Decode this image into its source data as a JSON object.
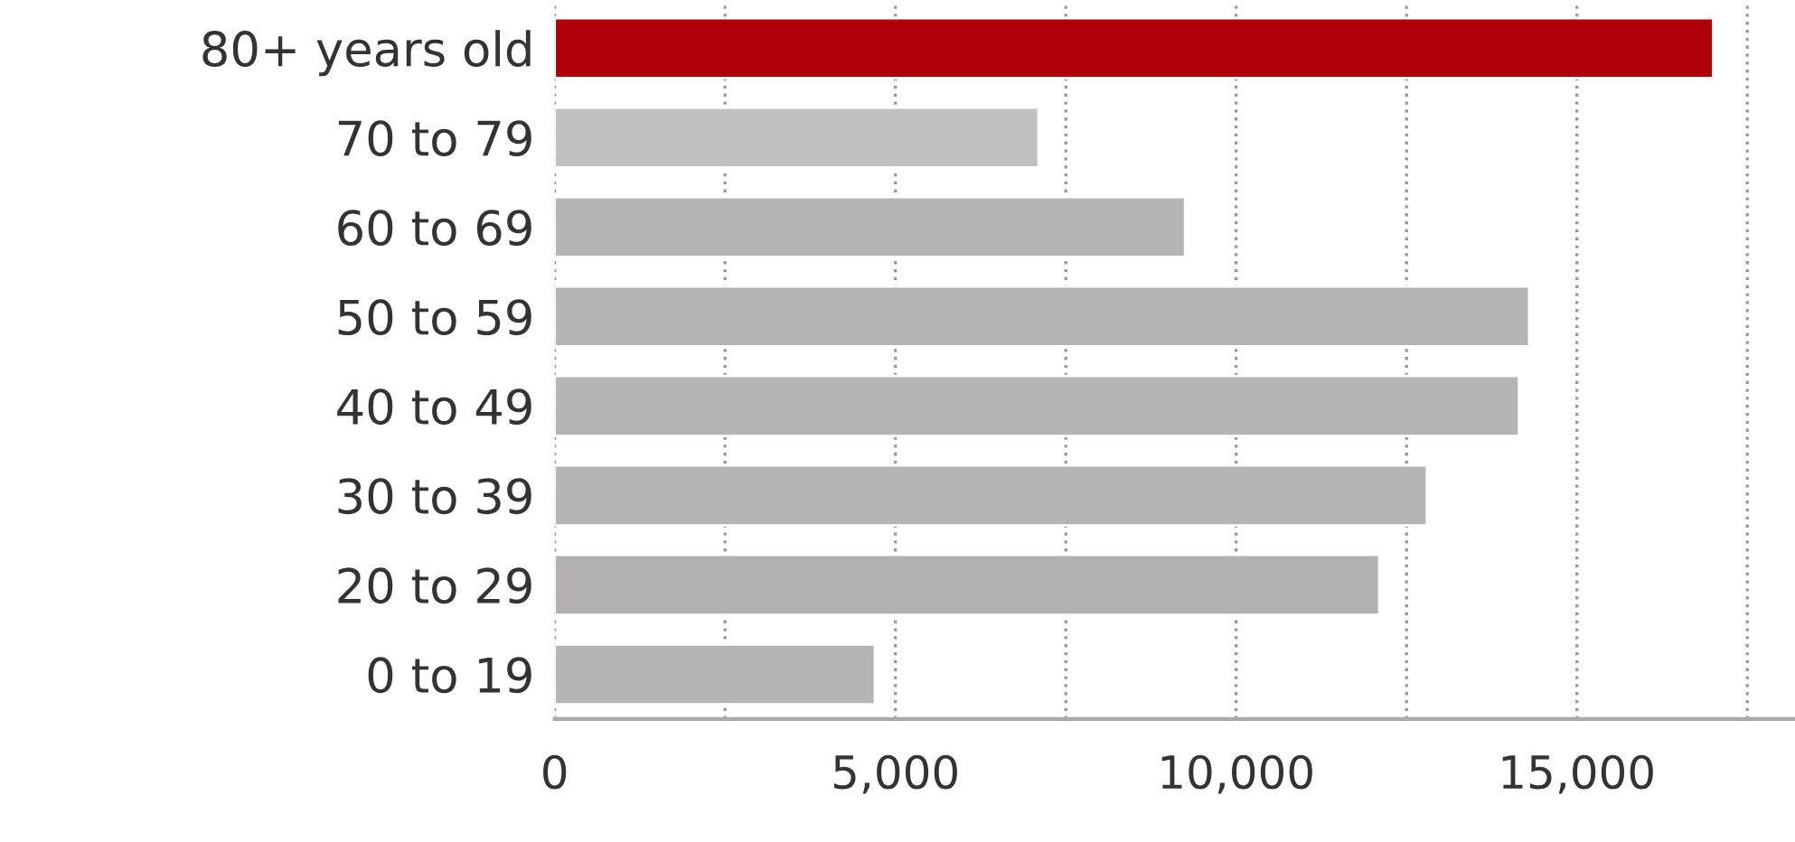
{
  "chart_data": {
    "type": "bar",
    "orientation": "horizontal",
    "categories": [
      "80+ years old",
      "70 to 79",
      "60 to 69",
      "50 to 59",
      "40 to 49",
      "30 to 39",
      "20 to 29",
      "0 to 19"
    ],
    "values": [
      17000,
      7100,
      9250,
      14300,
      14150,
      12800,
      12100,
      4700
    ],
    "colors": [
      "#b00008",
      "#c0c0c0",
      "#b4b4b4",
      "#b4b4b4",
      "#b4b4b4",
      "#b4b4b4",
      "#b2b0b0",
      "#b4b4b4"
    ],
    "xlim": [
      0,
      18200
    ],
    "xticks": [
      0,
      {
        "value": 2500,
        "label": null
      },
      {
        "value": 5000,
        "label": "5,000"
      },
      {
        "value": 7500,
        "label": null
      },
      {
        "value": 10000,
        "label": "10,000"
      },
      {
        "value": 12500,
        "label": null
      },
      {
        "value": 15000,
        "label": "15,000"
      },
      {
        "value": 17500,
        "label": null
      }
    ],
    "grid": "x",
    "legend": false
  }
}
